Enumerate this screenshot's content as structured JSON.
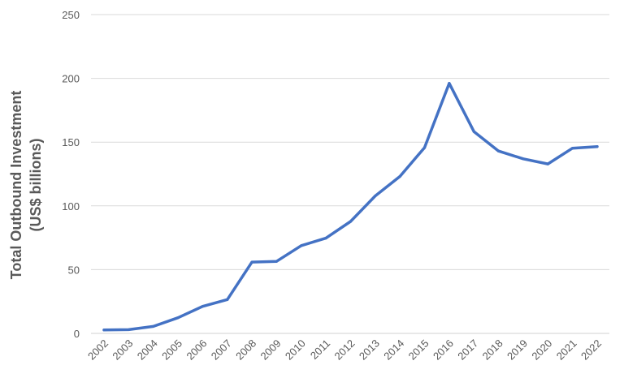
{
  "chart_data": {
    "type": "line",
    "title": "",
    "xlabel": "",
    "ylabel_lines": [
      "Total Outbound Investment",
      "(US$ billions)"
    ],
    "ylim": [
      0,
      250
    ],
    "yticks": [
      0,
      50,
      100,
      150,
      200,
      250
    ],
    "grid": true,
    "legend": "none",
    "x": [
      "2002",
      "2003",
      "2004",
      "2005",
      "2006",
      "2007",
      "2008",
      "2009",
      "2010",
      "2011",
      "2012",
      "2013",
      "2014",
      "2015",
      "2016",
      "2017",
      "2018",
      "2019",
      "2020",
      "2021",
      "2022"
    ],
    "series": [
      {
        "color": "#4472C4",
        "values": [
          2.7,
          2.9,
          5.5,
          12.3,
          21.2,
          26.5,
          55.9,
          56.5,
          68.8,
          74.7,
          87.8,
          107.8,
          123.1,
          145.7,
          196.1,
          158.3,
          143.0,
          136.9,
          132.9,
          145.2,
          146.5
        ]
      }
    ]
  }
}
